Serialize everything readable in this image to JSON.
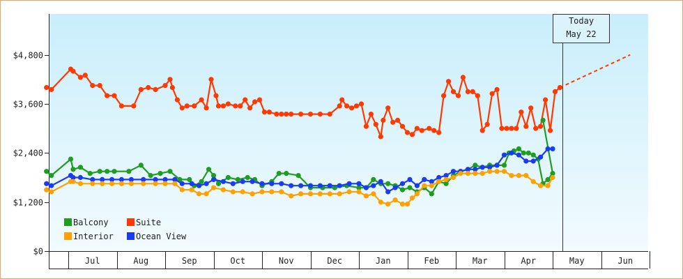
{
  "chart_data": {
    "type": "line",
    "title": "",
    "xlabel": "",
    "ylabel": "",
    "ylim": [
      0,
      5800
    ],
    "yticks": [
      0,
      1200,
      2400,
      3600,
      4800
    ],
    "ytick_labels": [
      "$0",
      "$1,200",
      "$2,400",
      "$3,600",
      "$4,800"
    ],
    "months": [
      "Jul",
      "Aug",
      "Sep",
      "Oct",
      "Nov",
      "Dec",
      "Jan",
      "Feb",
      "Mar",
      "Apr",
      "May",
      "Jun"
    ],
    "today_label": [
      "Today",
      "May 22"
    ],
    "today_x": 10.2,
    "projection": {
      "series": "Suite",
      "x": [
        10.15,
        11.6
      ],
      "y": [
        4000,
        4800
      ],
      "style": "dashed"
    },
    "legend": [
      "Balcony",
      "Suite",
      "Interior",
      "Ocean View"
    ],
    "series": [
      {
        "name": "Suite",
        "color": "#ff3a00",
        "x": [
          -0.45,
          -0.35,
          0.05,
          0.1,
          0.25,
          0.35,
          0.5,
          0.65,
          0.8,
          0.95,
          1.1,
          1.35,
          1.5,
          1.65,
          1.8,
          2.0,
          2.1,
          2.15,
          2.25,
          2.35,
          2.45,
          2.6,
          2.75,
          2.85,
          2.95,
          3.05,
          3.1,
          3.2,
          3.3,
          3.45,
          3.55,
          3.65,
          3.75,
          3.85,
          3.95,
          4.05,
          4.15,
          4.3,
          4.4,
          4.5,
          4.6,
          4.8,
          5.0,
          5.2,
          5.4,
          5.6,
          5.65,
          5.75,
          5.85,
          5.95,
          6.05,
          6.15,
          6.25,
          6.35,
          6.45,
          6.5,
          6.6,
          6.7,
          6.8,
          6.9,
          7.0,
          7.1,
          7.2,
          7.3,
          7.45,
          7.55,
          7.65,
          7.75,
          7.85,
          7.95,
          8.05,
          8.15,
          8.25,
          8.35,
          8.45,
          8.55,
          8.65,
          8.75,
          8.85,
          8.95,
          9.05,
          9.15,
          9.25,
          9.35,
          9.45,
          9.55,
          9.65,
          9.75,
          9.85,
          9.95,
          10.05,
          10.15
        ],
        "y": [
          4000,
          3950,
          4450,
          4400,
          4250,
          4300,
          4050,
          4050,
          3800,
          3800,
          3550,
          3550,
          3950,
          4000,
          3950,
          4050,
          4200,
          4000,
          3700,
          3500,
          3550,
          3550,
          3700,
          3500,
          4200,
          3800,
          3550,
          3550,
          3600,
          3550,
          3550,
          3700,
          3500,
          3650,
          3700,
          3400,
          3400,
          3350,
          3350,
          3350,
          3350,
          3350,
          3350,
          3350,
          3350,
          3550,
          3700,
          3550,
          3500,
          3550,
          3600,
          3050,
          3350,
          3100,
          2800,
          3200,
          3500,
          3150,
          3200,
          3050,
          2900,
          2850,
          3000,
          2950,
          3000,
          2950,
          2900,
          3800,
          4150,
          3900,
          3800,
          4250,
          3900,
          3900,
          3800,
          2950,
          3100,
          3850,
          3950,
          3000,
          3000,
          3000,
          3000,
          3400,
          3050,
          3500,
          3000,
          3050,
          3700,
          2950,
          3900,
          4000
        ]
      },
      {
        "name": "Balcony",
        "color": "#1e9e1e",
        "x": [
          -0.45,
          -0.35,
          0.05,
          0.1,
          0.25,
          0.45,
          0.65,
          0.8,
          0.95,
          1.25,
          1.5,
          1.7,
          1.9,
          2.1,
          2.3,
          2.5,
          2.6,
          2.75,
          2.9,
          3.0,
          3.1,
          3.3,
          3.5,
          3.7,
          3.85,
          4.0,
          4.2,
          4.35,
          4.5,
          4.75,
          5.0,
          5.25,
          5.5,
          5.75,
          6.0,
          6.15,
          6.3,
          6.45,
          6.6,
          6.75,
          6.9,
          7.05,
          7.2,
          7.35,
          7.5,
          7.65,
          7.8,
          7.95,
          8.1,
          8.25,
          8.4,
          8.55,
          8.7,
          8.85,
          9.0,
          9.1,
          9.2,
          9.3,
          9.4,
          9.5,
          9.6,
          9.7,
          9.8,
          9.9,
          10.0,
          9.8
        ],
        "y": [
          1950,
          1850,
          2250,
          2000,
          2050,
          1900,
          1950,
          1950,
          1950,
          1950,
          2100,
          1850,
          1900,
          1950,
          1750,
          1750,
          1600,
          1700,
          2000,
          1850,
          1650,
          1800,
          1750,
          1800,
          1750,
          1600,
          1700,
          1900,
          1900,
          1850,
          1550,
          1550,
          1550,
          1600,
          1550,
          1550,
          1750,
          1650,
          1650,
          1600,
          1500,
          1550,
          1450,
          1550,
          1400,
          1700,
          1650,
          1850,
          1950,
          2000,
          2100,
          2050,
          2100,
          2100,
          2100,
          2400,
          2450,
          2500,
          2400,
          2400,
          2350,
          2250,
          1650,
          1750,
          1900,
          3200
        ]
      },
      {
        "name": "Ocean View",
        "color": "#1a3cf0",
        "x": [
          -0.45,
          -0.35,
          0.05,
          0.1,
          0.25,
          0.5,
          0.7,
          0.9,
          1.1,
          1.3,
          1.55,
          1.8,
          2.0,
          2.2,
          2.35,
          2.55,
          2.7,
          2.85,
          3.0,
          3.2,
          3.4,
          3.6,
          3.8,
          4.0,
          4.2,
          4.4,
          4.6,
          4.8,
          5.0,
          5.2,
          5.4,
          5.6,
          5.8,
          6.0,
          6.15,
          6.3,
          6.45,
          6.6,
          6.75,
          6.9,
          7.05,
          7.2,
          7.35,
          7.5,
          7.65,
          7.8,
          7.95,
          8.1,
          8.25,
          8.4,
          8.55,
          8.7,
          8.85,
          9.0,
          9.15,
          9.3,
          9.45,
          9.6,
          9.75,
          9.9,
          10.0
        ],
        "y": [
          1650,
          1600,
          1850,
          1800,
          1800,
          1750,
          1750,
          1750,
          1750,
          1750,
          1750,
          1750,
          1750,
          1750,
          1650,
          1650,
          1600,
          1650,
          1750,
          1700,
          1650,
          1700,
          1700,
          1650,
          1650,
          1650,
          1600,
          1600,
          1600,
          1600,
          1600,
          1600,
          1650,
          1650,
          1550,
          1600,
          1700,
          1450,
          1550,
          1650,
          1750,
          1600,
          1750,
          1700,
          1800,
          1850,
          1950,
          1950,
          2000,
          2000,
          2050,
          2050,
          2100,
          2350,
          2400,
          2350,
          2200,
          2200,
          2300,
          2500,
          2500
        ]
      },
      {
        "name": "Interior",
        "color": "#ffa200",
        "x": [
          -0.45,
          -0.35,
          0.05,
          0.1,
          0.25,
          0.5,
          0.7,
          0.9,
          1.1,
          1.3,
          1.55,
          1.8,
          2.0,
          2.2,
          2.35,
          2.55,
          2.7,
          2.85,
          3.0,
          3.2,
          3.4,
          3.6,
          3.8,
          4.0,
          4.2,
          4.4,
          4.6,
          4.8,
          5.0,
          5.2,
          5.4,
          5.6,
          5.8,
          6.0,
          6.15,
          6.3,
          6.45,
          6.6,
          6.75,
          6.9,
          7.0,
          7.1,
          7.2,
          7.35,
          7.5,
          7.65,
          7.8,
          7.95,
          8.1,
          8.25,
          8.4,
          8.55,
          8.7,
          8.85,
          9.0,
          9.15,
          9.3,
          9.45,
          9.6,
          9.75,
          9.9,
          10.0
        ],
        "y": [
          1500,
          1450,
          1700,
          1700,
          1650,
          1650,
          1650,
          1650,
          1650,
          1650,
          1650,
          1650,
          1650,
          1650,
          1500,
          1500,
          1400,
          1400,
          1550,
          1500,
          1450,
          1450,
          1400,
          1450,
          1450,
          1450,
          1350,
          1400,
          1400,
          1400,
          1400,
          1400,
          1450,
          1450,
          1350,
          1400,
          1200,
          1150,
          1250,
          1150,
          1150,
          1300,
          1400,
          1600,
          1600,
          1700,
          1750,
          1800,
          1900,
          1900,
          1900,
          1900,
          1950,
          1950,
          1950,
          1850,
          1850,
          1850,
          1700,
          1600,
          1600,
          1800
        ]
      }
    ]
  }
}
